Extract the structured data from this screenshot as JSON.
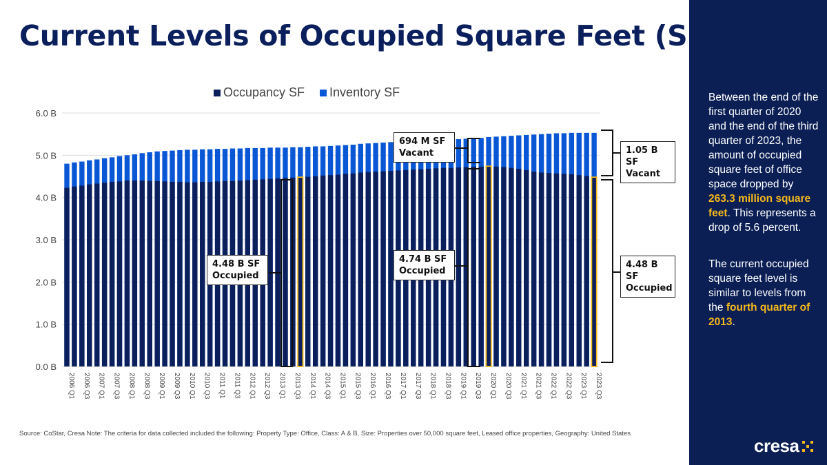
{
  "title": "Current Levels of Occupied Square Feet (SF)",
  "colors": {
    "occupancy": "#0a1f5c",
    "inventory": "#0a57d6",
    "highlight": "#f5b81c",
    "panel": "#0b1f55"
  },
  "chart_data": {
    "type": "bar",
    "stacked": "overlay",
    "y_ticks": [
      "0.0 B",
      "1.0 B",
      "2.0 B",
      "3.0 B",
      "4.0 B",
      "5.0 B",
      "6.0 B"
    ],
    "ylim": [
      0,
      6.0
    ],
    "y_unit": "billion SF",
    "grid": true,
    "legend_placement": "top",
    "categories": [
      "2006 Q1",
      "2006 Q2",
      "2006 Q3",
      "2006 Q4",
      "2007 Q1",
      "2007 Q2",
      "2007 Q3",
      "2007 Q4",
      "2008 Q1",
      "2008 Q2",
      "2008 Q3",
      "2008 Q4",
      "2009 Q1",
      "2009 Q2",
      "2009 Q3",
      "2009 Q4",
      "2010 Q1",
      "2010 Q2",
      "2010 Q3",
      "2010 Q4",
      "2011 Q1",
      "2011 Q2",
      "2011 Q3",
      "2011 Q4",
      "2012 Q1",
      "2012 Q2",
      "2012 Q3",
      "2012 Q4",
      "2013 Q1",
      "2013 Q2",
      "2013 Q3",
      "2013 Q4",
      "2014 Q1",
      "2014 Q2",
      "2014 Q3",
      "2014 Q4",
      "2015 Q1",
      "2015 Q2",
      "2015 Q3",
      "2015 Q4",
      "2016 Q1",
      "2016 Q2",
      "2016 Q3",
      "2016 Q4",
      "2017 Q1",
      "2017 Q2",
      "2017 Q3",
      "2017 Q4",
      "2018 Q1",
      "2018 Q2",
      "2018 Q3",
      "2018 Q4",
      "2019 Q1",
      "2019 Q2",
      "2019 Q3",
      "2019 Q4",
      "2020 Q1",
      "2020 Q2",
      "2020 Q3",
      "2020 Q4",
      "2021 Q1",
      "2021 Q2",
      "2021 Q3",
      "2021 Q4",
      "2022 Q1",
      "2022 Q2",
      "2022 Q3",
      "2022 Q4",
      "2023 Q1",
      "2023 Q2",
      "2023 Q3"
    ],
    "series": [
      {
        "name": "Occupancy SF",
        "values": [
          4.23,
          4.26,
          4.28,
          4.31,
          4.33,
          4.35,
          4.37,
          4.38,
          4.4,
          4.4,
          4.4,
          4.39,
          4.39,
          4.38,
          4.37,
          4.37,
          4.36,
          4.36,
          4.37,
          4.37,
          4.38,
          4.39,
          4.39,
          4.4,
          4.41,
          4.42,
          4.43,
          4.44,
          4.45,
          4.46,
          4.47,
          4.48,
          4.49,
          4.5,
          4.52,
          4.53,
          4.54,
          4.56,
          4.57,
          4.59,
          4.6,
          4.61,
          4.62,
          4.63,
          4.64,
          4.65,
          4.66,
          4.67,
          4.68,
          4.69,
          4.7,
          4.7,
          4.71,
          4.72,
          4.73,
          4.73,
          4.74,
          4.73,
          4.72,
          4.7,
          4.68,
          4.65,
          4.61,
          4.59,
          4.58,
          4.57,
          4.56,
          4.55,
          4.53,
          4.51,
          4.48
        ]
      },
      {
        "name": "Inventory SF",
        "values": [
          4.8,
          4.83,
          4.85,
          4.88,
          4.9,
          4.93,
          4.95,
          4.98,
          5.0,
          5.02,
          5.05,
          5.07,
          5.09,
          5.1,
          5.11,
          5.12,
          5.13,
          5.13,
          5.14,
          5.14,
          5.15,
          5.15,
          5.16,
          5.16,
          5.17,
          5.17,
          5.17,
          5.18,
          5.18,
          5.18,
          5.19,
          5.19,
          5.2,
          5.21,
          5.21,
          5.22,
          5.23,
          5.24,
          5.25,
          5.27,
          5.28,
          5.29,
          5.3,
          5.31,
          5.32,
          5.33,
          5.33,
          5.34,
          5.35,
          5.36,
          5.36,
          5.37,
          5.38,
          5.39,
          5.4,
          5.41,
          5.43,
          5.44,
          5.45,
          5.46,
          5.47,
          5.48,
          5.49,
          5.5,
          5.51,
          5.52,
          5.52,
          5.53,
          5.53,
          5.53,
          5.53
        ]
      }
    ],
    "highlighted_bars": [
      "2013 Q4",
      "2020 Q1",
      "2023 Q3"
    ],
    "annotations": [
      {
        "text_line1": "4.48 B SF",
        "text_line2": "Occupied"
      },
      {
        "text_line1": "694 M SF",
        "text_line2": "Vacant"
      },
      {
        "text_line1": "4.74 B SF",
        "text_line2": "Occupied"
      },
      {
        "text_line1": "1.05 B SF",
        "text_line2": "Vacant"
      },
      {
        "text_line1": "4.48 B SF",
        "text_line2": "Occupied"
      }
    ]
  },
  "source": "Source: CoStar, Cresa Note: The criteria for data collected included the following: Property Type: Office, Class: A & B, Size: Properties over 50,000 square feet, Leased office properties, Geography: United States",
  "panel": {
    "p1_a": "Between the end of the first quarter of 2020 and the end of the third quarter of 2023, the amount of occupied square feet of office space dropped by ",
    "p1_hl": "263.3 million square feet",
    "p1_b": ". This represents a drop of 5.6 percent.",
    "p2_a": "The current occupied square feet level is similar to levels from the ",
    "p2_hl": "fourth quarter of 2013",
    "p2_b": "."
  },
  "logo": "cresa"
}
